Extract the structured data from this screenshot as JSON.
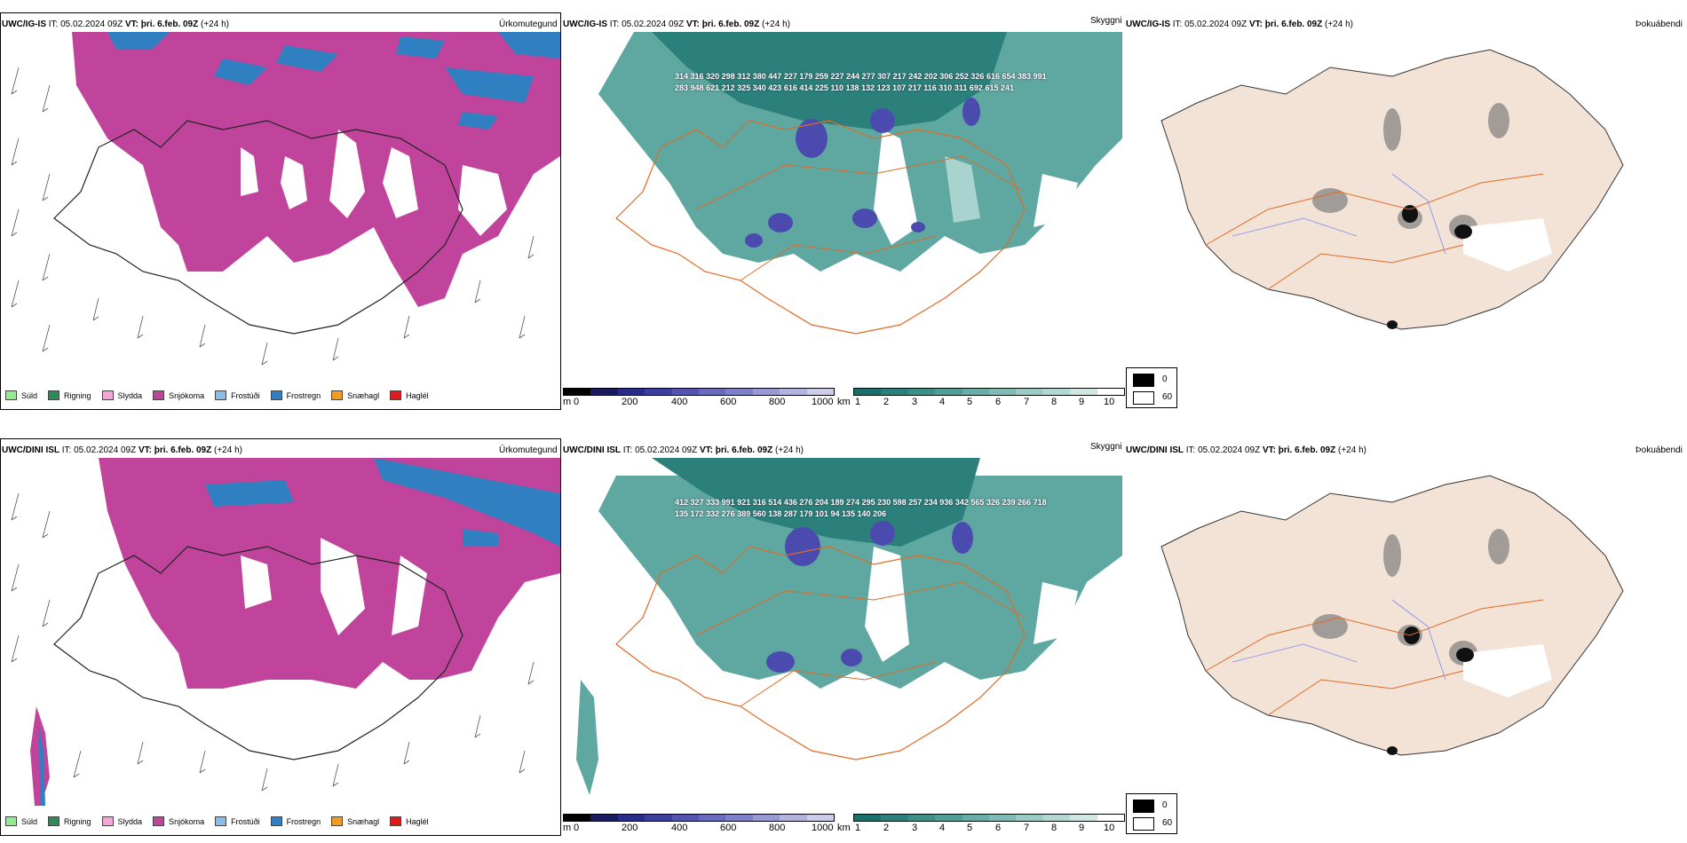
{
  "rows": [
    {
      "title": {
        "model": "UWC/IG-IS",
        "it_label": "IT:",
        "it_value": "05.02.2024 09Z",
        "vt_label": "VT:",
        "vt_value": "þri. 6.feb. 09Z",
        "lead": "(+24 h)"
      },
      "numbers": [
        "314",
        "316",
        "320",
        "298",
        "312",
        "380",
        "447",
        "227",
        "179",
        "259",
        "227",
        "244",
        "277",
        "307",
        "217",
        "242",
        "202",
        "306",
        "252",
        "326",
        "616",
        "654",
        "383",
        "991",
        "283",
        "948",
        "621",
        "212",
        "325",
        "340",
        "423",
        "616",
        "414",
        "225",
        "110",
        "138",
        "132",
        "123",
        "107",
        "217",
        "116",
        "310",
        "311",
        "692",
        "615",
        "241"
      ]
    },
    {
      "title": {
        "model": "UWC/DINI ISL",
        "it_label": "IT:",
        "it_value": "05.02.2024 09Z",
        "vt_label": "VT:",
        "vt_value": "þri. 6.feb. 09Z",
        "lead": "(+24 h)"
      },
      "numbers": [
        "412",
        "327",
        "333",
        "991",
        "921",
        "316",
        "514",
        "436",
        "276",
        "204",
        "189",
        "274",
        "295",
        "230",
        "598",
        "257",
        "234",
        "936",
        "342",
        "565",
        "326",
        "239",
        "266",
        "718",
        "135",
        "172",
        "332",
        "276",
        "389",
        "560",
        "138",
        "287",
        "179",
        "101",
        "94",
        "135",
        "140",
        "206"
      ]
    }
  ],
  "panel_names": {
    "precip": "Úrkomutegund",
    "vis": "Skyggni",
    "fog": "Þokuábendi"
  },
  "precip_legend": [
    {
      "label": "Súld",
      "color": "#90ee90"
    },
    {
      "label": "Rigning",
      "color": "#2e8b57"
    },
    {
      "label": "Slydda",
      "color": "#f4a6d7"
    },
    {
      "label": "Snjókoma",
      "color": "#c0449b"
    },
    {
      "label": "Frostúði",
      "color": "#87bdea"
    },
    {
      "label": "Frostregn",
      "color": "#2f7fc1"
    },
    {
      "label": "Snæhagl",
      "color": "#f39c1d"
    },
    {
      "label": "Haglél",
      "color": "#e01b1b"
    }
  ],
  "cloud_base_scale": {
    "unit": "m",
    "ticks": [
      "0",
      "200",
      "400",
      "600",
      "800",
      "1000"
    ],
    "colors": [
      "#000000",
      "#1a1a5e",
      "#2b2b8a",
      "#3e3e9e",
      "#5555b0",
      "#6b6bbd",
      "#8080c8",
      "#9a9ad3",
      "#b3b3de",
      "#cdcde9"
    ]
  },
  "visibility_scale": {
    "unit": "km",
    "ticks": [
      "1",
      "2",
      "3",
      "4",
      "5",
      "6",
      "7",
      "8",
      "9",
      "10"
    ],
    "colors": [
      "#1b6f6a",
      "#2b807b",
      "#3f8f89",
      "#539d97",
      "#6aaca6",
      "#82bbb6",
      "#9ccac5",
      "#b6d8d4",
      "#d1e7e4",
      "#ffffff"
    ]
  },
  "fog_legend": [
    {
      "label": "0",
      "color": "#000000"
    },
    {
      "label": "60",
      "color": "#ffffff"
    }
  ],
  "colors": {
    "snow": "#c0449b",
    "frzrain": "#2f7fc1",
    "vis_dark": "#2b807b",
    "vis_mid": "#5fa8a2",
    "vis_light": "#a9d3ce",
    "land": "#f3e2d6",
    "roads": "#e06b25",
    "rivers": "#7c8cf0"
  }
}
